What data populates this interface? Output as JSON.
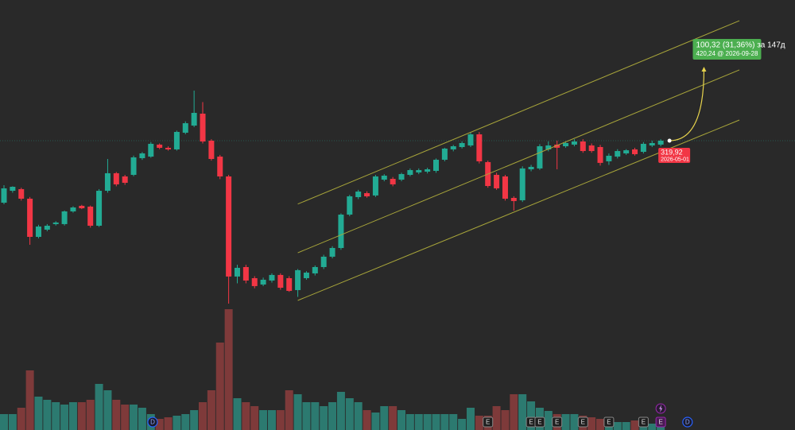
{
  "chart_data": {
    "type": "candlestick",
    "up_color": "#22ab94",
    "down_color": "#f23645",
    "volume_up_color": "#2c7a70",
    "volume_down_color": "#7e3a3a",
    "ylim": [
      -85.6,
      517.1
    ],
    "volume_ylim": [
      0,
      160
    ],
    "open": [
      233.0,
      249.7,
      252.0,
      238.6,
      185.1,
      195.2,
      203.0,
      203.0,
      220.8,
      228.6,
      227.5,
      200.7,
      249.7,
      274.3,
      269.8,
      272.0,
      295.4,
      297.6,
      314.4,
      309.9,
      307.7,
      331.1,
      341.1,
      357.8,
      319.9,
      297.6,
      269.8,
      129.5,
      142.8,
      127.2,
      118.3,
      123.9,
      131.7,
      127.2,
      110.5,
      127.2,
      133.9,
      142.8,
      157.3,
      169.5,
      216.3,
      240.8,
      246.4,
      243.1,
      265.3,
      266.4,
      265.3,
      272.0,
      275.4,
      276.5,
      277.6,
      293.2,
      307.7,
      311.0,
      313.2,
      328.8,
      289.9,
      272.0,
      269.8,
      239.7,
      236.4,
      279.8,
      281.0,
      307.7,
      314.4,
      312.1,
      314.4,
      318.8,
      313.2,
      311.0,
      291.0,
      297.6,
      302.1,
      307.7,
      304.3,
      313.2,
      314.4
    ],
    "high": [
      257.5,
      256,
      254,
      241,
      202,
      203,
      207,
      222,
      228,
      230,
      229,
      252,
      294.3,
      276,
      272,
      299,
      304,
      318,
      316,
      312,
      334,
      347,
      390.1,
      374,
      322,
      300,
      272,
      146,
      146,
      130,
      128,
      134,
      134,
      130,
      140,
      137,
      145,
      160,
      172,
      218,
      244,
      251,
      249,
      272,
      273,
      269,
      275,
      281,
      281,
      282,
      295,
      310,
      314,
      319,
      331,
      332,
      292,
      275,
      272,
      242,
      284,
      286,
      315,
      319,
      320,
      319,
      322,
      322,
      316,
      314,
      302,
      308,
      308,
      310,
      318,
      320,
      322
    ],
    "low": [
      230.8,
      247,
      236,
      174.0,
      183,
      193,
      201,
      201,
      219,
      224,
      198,
      199,
      247,
      256,
      258,
      270,
      293,
      296,
      308,
      306,
      306,
      329,
      339,
      316,
      292,
      266,
      91.5,
      120,
      120,
      113,
      116,
      121,
      111,
      108,
      101,
      125,
      131,
      140,
      155,
      167,
      214,
      238,
      240,
      241,
      263,
      256,
      263,
      270,
      273,
      274,
      275,
      291,
      305,
      309,
      311,
      288,
      254,
      251,
      236,
      221.9,
      234,
      277,
      279,
      305,
      279.8,
      310,
      312,
      303,
      303,
      285,
      286,
      295,
      300,
      299,
      302,
      311,
      312
    ],
    "close": [
      253.1,
      255.3,
      238.6,
      185.1,
      199.6,
      200.7,
      205.2,
      220.8,
      226.3,
      225.2,
      200.7,
      249.7,
      274.3,
      258.7,
      260.9,
      296.5,
      302.1,
      315.5,
      309.9,
      307.7,
      332.2,
      344.4,
      358.9,
      318.8,
      294.3,
      269.8,
      129.5,
      141.7,
      123.9,
      116.1,
      125.0,
      131.7,
      113.8,
      109.4,
      138.4,
      135.0,
      142.8,
      157.3,
      169.5,
      216.3,
      241.9,
      248.6,
      241.9,
      269.8,
      270.9,
      258.7,
      273.1,
      278.7,
      278.7,
      279.8,
      293.2,
      308.8,
      312.1,
      316.6,
      328.8,
      291.0,
      256.4,
      253.1,
      238.6,
      235.3,
      281.0,
      283.2,
      312.1,
      313.2,
      310.0,
      316.6,
      318.8,
      305.4,
      305.4,
      288.8,
      298.8,
      305.4,
      306.5,
      301.0,
      315.5,
      316.6,
      319.92
    ],
    "volume": [
      20,
      20,
      28,
      75,
      42,
      38,
      35,
      32,
      35,
      35,
      38,
      58,
      50,
      38,
      32,
      32,
      28,
      20,
      14,
      16,
      18,
      20,
      25,
      35,
      50,
      110,
      152,
      40,
      35,
      30,
      25,
      25,
      25,
      50,
      45,
      35,
      35,
      30,
      35,
      48,
      40,
      35,
      25,
      22,
      30,
      30,
      25,
      20,
      20,
      20,
      20,
      20,
      20,
      14,
      28,
      18,
      18,
      30,
      25,
      45,
      45,
      36,
      28,
      24,
      20,
      20,
      20,
      18,
      16,
      14,
      12,
      10,
      10,
      12,
      8,
      8,
      8
    ],
    "price_label": "319,92",
    "price_date": "2026-05-01",
    "channel": {
      "color": "#a8a53a",
      "x": [
        34,
        85.1
      ],
      "lines": [
        [
          231.1,
          488.1
        ],
        [
          162.8,
          419.1
        ],
        [
          96.0,
          348.9
        ]
      ]
    },
    "forecast": {
      "to_x": 81,
      "to_value": 420.24,
      "label": "100,32 (31,36%) за 147д",
      "sublabel": "420,24 @ 2026-09-28",
      "color": "#e8d44d"
    },
    "events": [
      {
        "x": 17.2,
        "label": "D",
        "color": "#2962ff"
      },
      {
        "x": 56,
        "label": "E",
        "color": "#888888"
      },
      {
        "x": 61,
        "label": "E",
        "color": "#888888"
      },
      {
        "x": 62,
        "label": "E",
        "color": "#888888"
      },
      {
        "x": 64,
        "label": "E",
        "color": "#888888"
      },
      {
        "x": 67,
        "label": "E",
        "color": "#888888"
      },
      {
        "x": 70,
        "label": "E",
        "color": "#888888"
      },
      {
        "x": 74,
        "label": "E",
        "color": "#888888"
      },
      {
        "x": 76,
        "label": "E",
        "color": "#9c27b0"
      },
      {
        "x": 79.1,
        "label": "D",
        "color": "#2962ff"
      }
    ]
  }
}
